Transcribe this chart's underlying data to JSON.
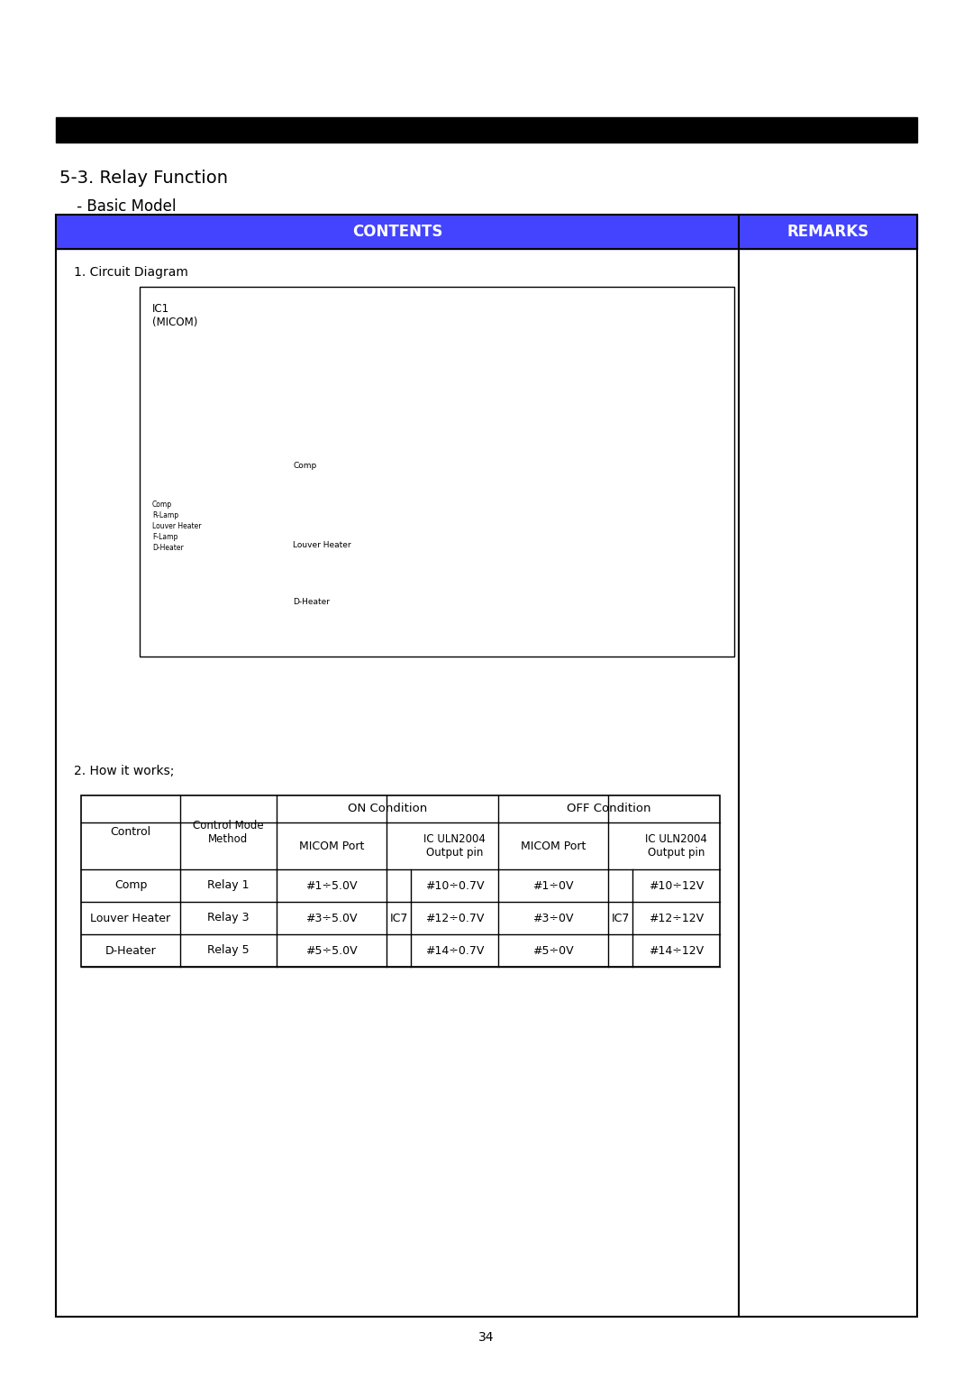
{
  "page_title": "5-3. Relay Function",
  "page_subtitle": " - Basic Model",
  "header_bg": "#4444FF",
  "header_text_color": "#FFFFFF",
  "contents_label": "CONTENTS",
  "remarks_label": "REMARKS",
  "section1_title": "1. Circuit Diagram",
  "circuit_ic1_label": "IC1\n(MICOM)",
  "circuit_comp_left_labels": [
    "Comp",
    "R-Lamp",
    "Louver Heater",
    "F-Lamp",
    "D-Heater"
  ],
  "circuit_comp_label": "Comp",
  "circuit_louver_label": "Louver Heater",
  "circuit_dheater_label": "D-Heater",
  "section2_title": "2. How it works;",
  "table_data": [
    [
      "Comp",
      "Relay 1",
      "#1÷5.0V",
      "#10÷0.7V",
      "#1÷0V",
      "#10÷12V"
    ],
    [
      "Louver Heater",
      "Relay 3",
      "#3÷5.0V",
      "#12÷0.7V",
      "#3÷0V",
      "#12÷12V"
    ],
    [
      "D-Heater",
      "Relay 5",
      "#5÷5.0V",
      "#14÷0.7V",
      "#5÷0V",
      "#14÷12V"
    ]
  ],
  "ic7_label": "IC7",
  "page_number": "34",
  "background_color": "#FFFFFF",
  "top_bar_color": "#000000",
  "black": "#000000",
  "white": "#FFFFFF"
}
